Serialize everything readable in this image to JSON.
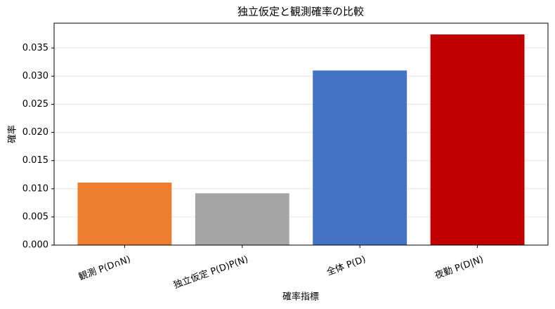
{
  "chart_data": {
    "type": "bar",
    "title": "独立仮定と観測確率の比較",
    "x_label": "確率指標",
    "y_label": "確率",
    "categories": [
      "観測 P(D∩N)",
      "独立仮定 P(D)P(N)",
      "全体 P(D)",
      "夜勤 P(D|N)"
    ],
    "values": [
      0.0111,
      0.0092,
      0.031,
      0.0374
    ],
    "colors": [
      "#ed7d31",
      "#a5a5a5",
      "#4472c4",
      "#c00000"
    ],
    "ylim": [
      0,
      0.0394
    ],
    "yticks": [
      {
        "value": 0,
        "label": "0.000"
      },
      {
        "value": 0.005,
        "label": "0.005"
      },
      {
        "value": 0.01,
        "label": "0.010"
      },
      {
        "value": 0.015,
        "label": "0.015"
      },
      {
        "value": 0.02,
        "label": "0.020"
      },
      {
        "value": 0.025,
        "label": "0.025"
      },
      {
        "value": 0.03,
        "label": "0.030"
      },
      {
        "value": 0.035,
        "label": "0.035"
      }
    ],
    "grid": true
  }
}
